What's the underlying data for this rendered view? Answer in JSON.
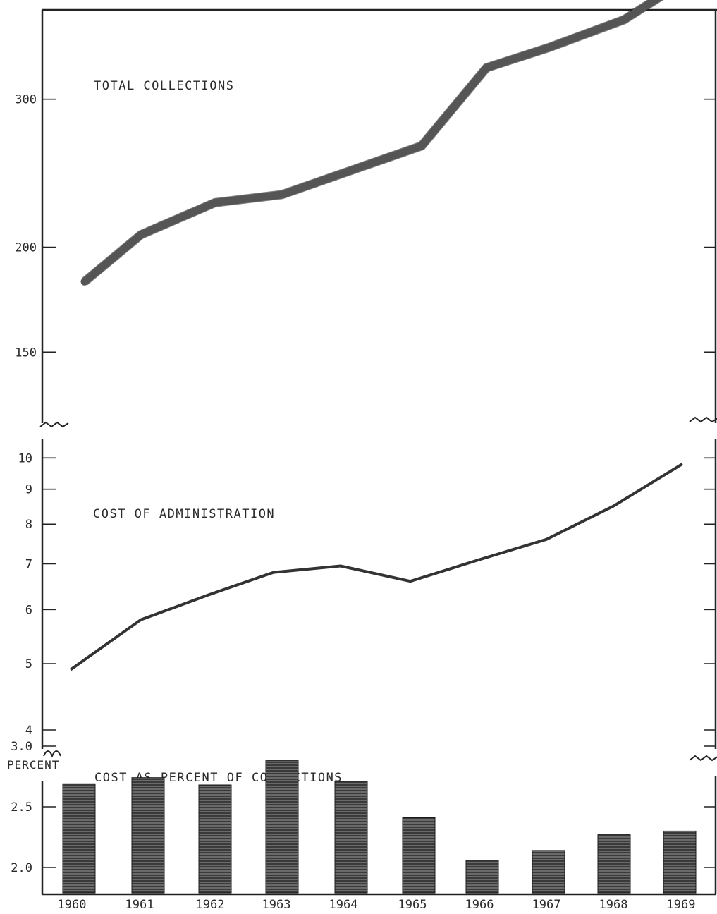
{
  "chart_data": [
    {
      "type": "line",
      "title": "TOTAL COLLECTIONS",
      "scale": "log",
      "ylim": [
        120,
        450
      ],
      "yticks": [
        150,
        200,
        300,
        400,
        450
      ],
      "x": [
        "1960",
        "1961",
        "1962",
        "1963",
        "1964",
        "1965",
        "1966",
        "1967",
        "1968",
        "1969"
      ],
      "values": [
        182,
        207,
        226,
        231,
        246,
        264,
        327,
        346,
        373,
        420
      ]
    },
    {
      "type": "line",
      "title": "COST OF ADMINISTRATION",
      "scale": "log",
      "ylim": [
        3.8,
        10.6
      ],
      "yticks": [
        4,
        5,
        6,
        7,
        8,
        9,
        10
      ],
      "x": [
        "1960",
        "1961",
        "1962",
        "1963",
        "1964",
        "1965",
        "1966",
        "1967",
        "1968",
        "1969"
      ],
      "values": [
        4.9,
        5.8,
        6.3,
        6.8,
        6.95,
        6.6,
        7.1,
        7.6,
        8.5,
        9.8
      ]
    },
    {
      "type": "bar",
      "title": "COST AS PERCENT OF COLLECTIONS",
      "ylabel": "PERCENT",
      "ylim": [
        1.7,
        3.1
      ],
      "yticks": [
        "2.0",
        "2.5",
        "3.0"
      ],
      "categories": [
        "1960",
        "1961",
        "1962",
        "1963",
        "1964",
        "1965",
        "1966",
        "1967",
        "1968",
        "1969"
      ],
      "values": [
        2.69,
        2.74,
        2.68,
        2.88,
        2.71,
        2.41,
        2.06,
        2.14,
        2.27,
        2.3
      ]
    }
  ],
  "x_axis": {
    "tick_labels": [
      "1960",
      "1961",
      "1962",
      "1963",
      "1964",
      "1965",
      "1966",
      "1967",
      "1968",
      "1969"
    ]
  }
}
